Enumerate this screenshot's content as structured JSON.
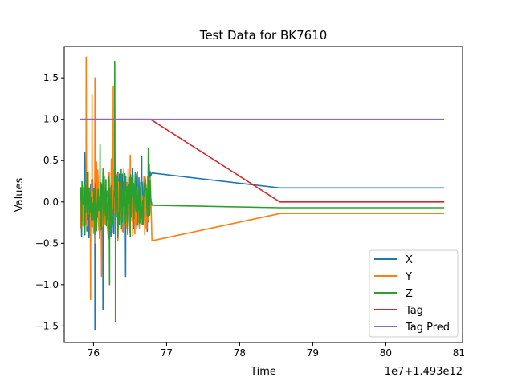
{
  "chart_data": {
    "type": "line",
    "title": "Test Data for BK7610",
    "xlabel": "Time",
    "ylabel": "Values",
    "x_offset_label": "1e7+1.493e12",
    "xlim": [
      75.6,
      81.05
    ],
    "ylim": [
      -1.7,
      1.88
    ],
    "xticks": [
      76,
      77,
      78,
      79,
      80,
      81
    ],
    "yticks": [
      -1.5,
      -1.0,
      -0.5,
      0.0,
      0.5,
      1.0,
      1.5
    ],
    "ytick_labels": [
      "−1.5",
      "−1.0",
      "−0.5",
      "0.0",
      "0.5",
      "1.0",
      "1.5"
    ],
    "grid": false,
    "legend": "lower-right",
    "noise_window": [
      75.82,
      76.78
    ],
    "series": [
      {
        "name": "X",
        "color": "#1f77b4",
        "noise_amplitude": 0.45,
        "noise_peaks": [
          [
            76.02,
            -1.55
          ],
          [
            76.13,
            -1.3
          ],
          [
            76.44,
            -0.9
          ],
          [
            75.88,
            0.6
          ],
          [
            76.66,
            0.55
          ]
        ],
        "points": [
          [
            76.8,
            0.35
          ],
          [
            78.55,
            0.17
          ],
          [
            80.8,
            0.17
          ]
        ]
      },
      {
        "name": "Y",
        "color": "#ff7f0e",
        "noise_amplitude": 0.5,
        "noise_peaks": [
          [
            75.9,
            1.75
          ],
          [
            75.96,
            -1.18
          ],
          [
            75.98,
            1.3
          ],
          [
            76.02,
            1.5
          ],
          [
            76.27,
            1.4
          ],
          [
            76.11,
            -0.9
          ]
        ],
        "points": [
          [
            76.8,
            -0.47
          ],
          [
            78.55,
            -0.14
          ],
          [
            80.8,
            -0.14
          ]
        ]
      },
      {
        "name": "Z",
        "color": "#2ca02c",
        "noise_amplitude": 0.4,
        "noise_peaks": [
          [
            76.29,
            1.7
          ],
          [
            76.3,
            -1.45
          ],
          [
            76.09,
            0.7
          ],
          [
            76.75,
            0.65
          ],
          [
            76.22,
            -1.0
          ]
        ],
        "points": [
          [
            76.8,
            -0.04
          ],
          [
            78.55,
            -0.07
          ],
          [
            80.8,
            -0.07
          ]
        ]
      },
      {
        "name": "Tag",
        "color": "#d62728",
        "points": [
          [
            75.82,
            1.0
          ],
          [
            76.78,
            1.0
          ],
          [
            78.55,
            0.0
          ],
          [
            80.8,
            0.0
          ]
        ]
      },
      {
        "name": "Tag Pred",
        "color": "#9467bd",
        "points": [
          [
            75.82,
            1.0
          ],
          [
            80.8,
            1.0
          ]
        ]
      }
    ]
  }
}
